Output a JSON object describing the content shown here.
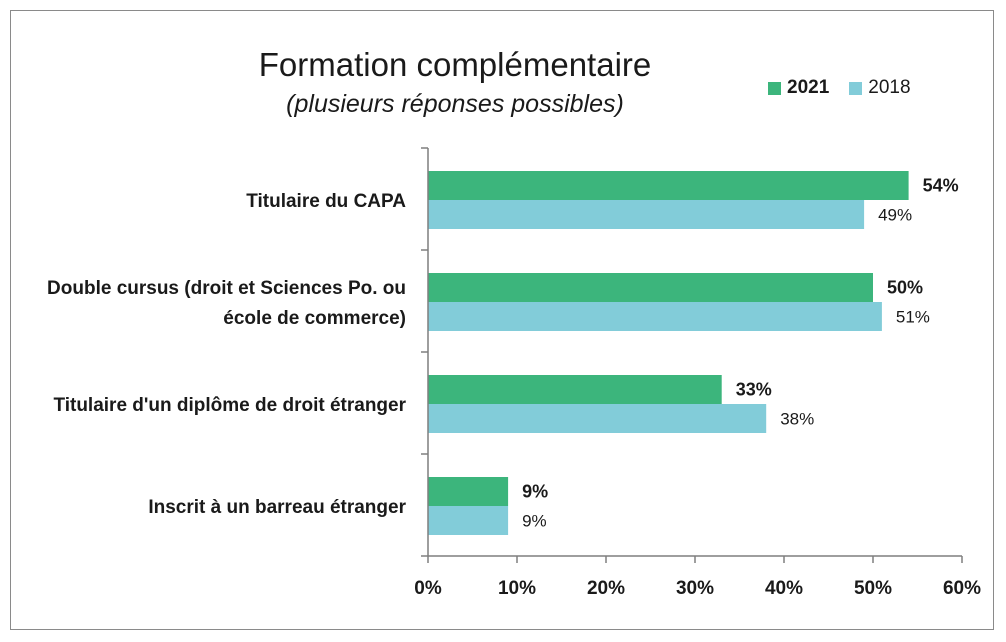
{
  "chart_data": {
    "type": "bar",
    "orientation": "horizontal",
    "title": "Formation complémentaire",
    "subtitle": "(plusieurs réponses possibles)",
    "categories": [
      [
        "Titulaire du CAPA"
      ],
      [
        "Double cursus (droit et Sciences Po. ou",
        "école de commerce)"
      ],
      [
        "Titulaire d'un diplôme de droit étranger"
      ],
      [
        "Inscrit à un barreau étranger"
      ]
    ],
    "series": [
      {
        "name": "2021",
        "color": "#3cb57c",
        "values": [
          54,
          50,
          33,
          9
        ],
        "labels": [
          "54%",
          "50%",
          "33%",
          "9%"
        ],
        "bold": true
      },
      {
        "name": "2018",
        "color": "#82ccd9",
        "values": [
          49,
          51,
          38,
          9
        ],
        "labels": [
          "49%",
          "51%",
          "38%",
          "9%"
        ],
        "bold": false
      }
    ],
    "xlim": [
      0,
      60
    ],
    "ticks": [
      0,
      10,
      20,
      30,
      40,
      50,
      60
    ],
    "tick_labels": [
      "0%",
      "10%",
      "20%",
      "30%",
      "40%",
      "50%",
      "60%"
    ],
    "grid": false,
    "legend": "top-right"
  }
}
